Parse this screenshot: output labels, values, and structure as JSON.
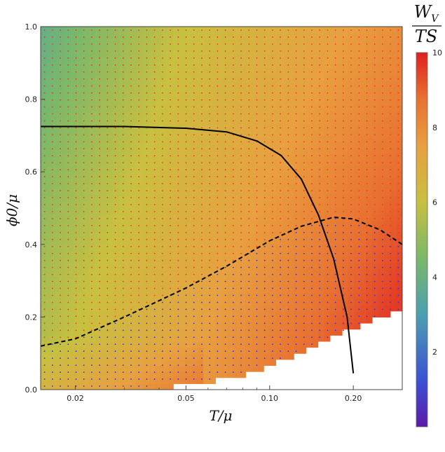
{
  "chart_data": {
    "type": "heatmap",
    "title": "",
    "x_axis": {
      "label": "T/μ",
      "scale": "log",
      "range": [
        0.015,
        0.3
      ],
      "ticks": [
        0.02,
        0.05,
        0.1,
        0.2
      ],
      "tick_labels": [
        "0.02",
        "0.05",
        "0.10",
        "0.20"
      ]
    },
    "y_axis": {
      "label": "ϕ0/μ",
      "range": [
        0,
        1
      ],
      "ticks": [
        0,
        0.2,
        0.4,
        0.6,
        0.8,
        1.0
      ],
      "tick_labels": [
        "0.0",
        "0.2",
        "0.4",
        "0.6",
        "0.8",
        "1.0"
      ]
    },
    "colorbar": {
      "title_numerator": "W_V",
      "title_denominator": "TS",
      "range": [
        0,
        10
      ],
      "ticks": [
        2,
        4,
        6,
        8,
        10
      ],
      "tick_labels": [
        "2",
        "4",
        "6",
        "8",
        "10"
      ],
      "colormap": [
        "#5c1aa8",
        "#3b50d6",
        "#4aa0b0",
        "#7ab86a",
        "#c8c040",
        "#e8a040",
        "#e87030",
        "#e02020"
      ]
    },
    "domain_boundary_lower": {
      "x": [
        0.015,
        0.02,
        0.03,
        0.05,
        0.08,
        0.12,
        0.2,
        0.3
      ],
      "y": [
        0.0,
        0.0,
        0.0,
        0.01,
        0.04,
        0.09,
        0.17,
        0.22
      ]
    },
    "series": [
      {
        "style": "solid",
        "color": "#000000",
        "x": [
          0.015,
          0.03,
          0.05,
          0.07,
          0.09,
          0.11,
          0.13,
          0.15,
          0.17,
          0.19,
          0.2
        ],
        "y": [
          0.725,
          0.725,
          0.72,
          0.71,
          0.685,
          0.645,
          0.58,
          0.48,
          0.36,
          0.2,
          0.045
        ]
      },
      {
        "style": "dashed",
        "color": "#000000",
        "x": [
          0.015,
          0.02,
          0.03,
          0.05,
          0.07,
          0.1,
          0.13,
          0.17,
          0.2,
          0.25,
          0.3
        ],
        "y": [
          0.12,
          0.14,
          0.2,
          0.28,
          0.34,
          0.41,
          0.45,
          0.475,
          0.47,
          0.44,
          0.4
        ]
      }
    ],
    "dot_overlay": {
      "description_colors": {
        "above_dashed": "#ff2a2a",
        "below_dashed": "#2a2aff"
      }
    }
  }
}
